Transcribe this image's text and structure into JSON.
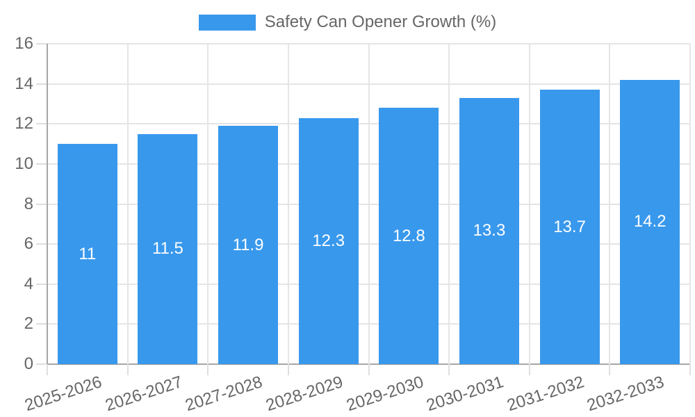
{
  "legend": {
    "label": "Safety Can Opener Growth (%)"
  },
  "chart_data": {
    "type": "bar",
    "title": "Safety Can Opener Growth (%)",
    "categories": [
      "2025-2026",
      "2026-2027",
      "2027-2028",
      "2028-2029",
      "2029-2030",
      "2030-2031",
      "2031-2032",
      "2032-2033"
    ],
    "values": [
      11,
      11.5,
      11.9,
      12.3,
      12.8,
      13.3,
      13.7,
      14.2
    ],
    "bar_labels": [
      "11",
      "11.5",
      "11.9",
      "12.3",
      "12.8",
      "13.3",
      "13.7",
      "14.2"
    ],
    "xlabel": "",
    "ylabel": "",
    "ylim": [
      0,
      16
    ],
    "ytick_step": 2,
    "ytick_labels": [
      "0",
      "2",
      "4",
      "6",
      "8",
      "10",
      "12",
      "14",
      "16"
    ],
    "grid": true,
    "legend_position": "top",
    "colors": {
      "bar": "#3898EC",
      "bar_label_text": "#FFFFFF",
      "axis_text": "#666666",
      "gridline": "#E5E5E5",
      "axis_border": "#A6A6A6"
    }
  }
}
